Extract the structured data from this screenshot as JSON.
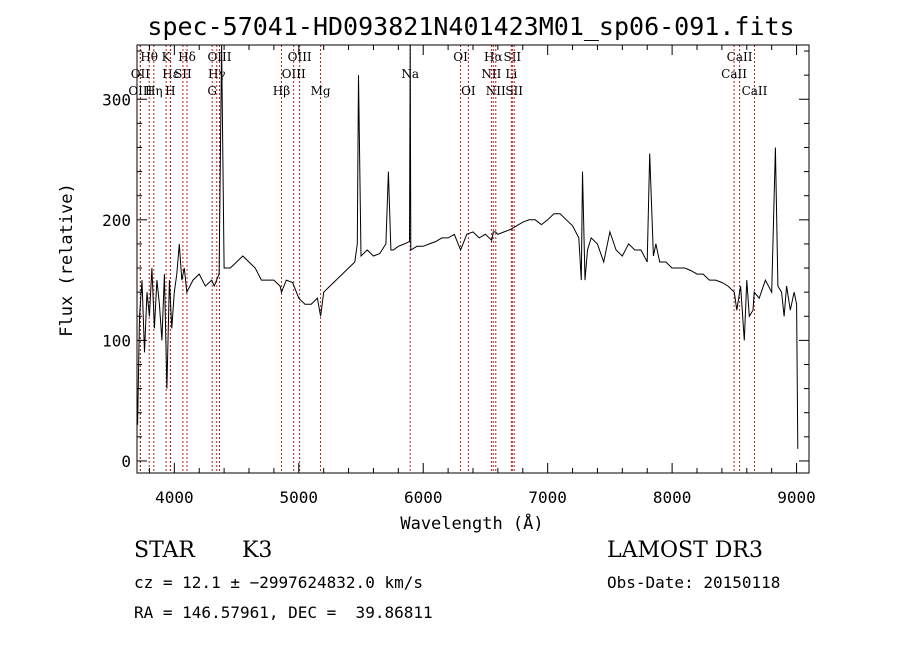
{
  "chart_data": {
    "type": "line",
    "title": "spec-57041-HD093821N401423M01_sp06-091.fits",
    "xlabel": "Wavelength (Å)",
    "ylabel": "Flux (relative)",
    "xlim": [
      3700,
      9100
    ],
    "ylim": [
      -10,
      345
    ],
    "grid": false,
    "x_ticks": [
      4000,
      5000,
      6000,
      7000,
      8000,
      9000
    ],
    "y_ticks": [
      0,
      100,
      200,
      300
    ],
    "series": [
      {
        "x": [
          3705,
          3720,
          3740,
          3760,
          3780,
          3800,
          3820,
          3840,
          3860,
          3880,
          3900,
          3920,
          3940,
          3960,
          3980,
          4000,
          4020,
          4040,
          4060,
          4080,
          4100,
          4150,
          4200,
          4250,
          4300,
          4320,
          4340,
          4360,
          4380,
          4400,
          4450,
          4500,
          4550,
          4600,
          4650,
          4700,
          4750,
          4800,
          4850,
          4861,
          4900,
          4950,
          5000,
          5050,
          5100,
          5150,
          5175,
          5200,
          5250,
          5300,
          5350,
          5400,
          5450,
          5470,
          5480,
          5500,
          5550,
          5600,
          5650,
          5700,
          5720,
          5740,
          5760,
          5800,
          5850,
          5890,
          5895,
          5900,
          5950,
          6000,
          6050,
          6100,
          6150,
          6200,
          6250,
          6300,
          6350,
          6400,
          6450,
          6500,
          6550,
          6563,
          6580,
          6600,
          6650,
          6700,
          6750,
          6800,
          6850,
          6900,
          6950,
          7000,
          7050,
          7100,
          7150,
          7200,
          7250,
          7270,
          7280,
          7300,
          7320,
          7350,
          7400,
          7450,
          7500,
          7550,
          7600,
          7650,
          7700,
          7750,
          7800,
          7820,
          7850,
          7870,
          7900,
          7950,
          8000,
          8050,
          8100,
          8150,
          8200,
          8250,
          8300,
          8350,
          8400,
          8450,
          8500,
          8520,
          8550,
          8580,
          8600,
          8620,
          8650,
          8660,
          8700,
          8750,
          8800,
          8830,
          8850,
          8880,
          8900,
          8920,
          8950,
          8980,
          9000,
          9010
        ],
        "y": [
          30,
          120,
          150,
          90,
          140,
          120,
          160,
          110,
          150,
          130,
          100,
          155,
          60,
          150,
          110,
          140,
          155,
          180,
          150,
          160,
          140,
          150,
          155,
          145,
          150,
          145,
          150,
          155,
          355,
          160,
          160,
          165,
          170,
          165,
          160,
          150,
          150,
          150,
          145,
          140,
          150,
          148,
          135,
          130,
          130,
          135,
          120,
          140,
          145,
          150,
          155,
          160,
          165,
          180,
          320,
          170,
          175,
          170,
          172,
          180,
          240,
          175,
          175,
          178,
          180,
          182,
          350,
          175,
          178,
          178,
          180,
          182,
          185,
          185,
          188,
          175,
          188,
          190,
          185,
          188,
          183,
          190,
          190,
          188,
          190,
          192,
          195,
          198,
          200,
          200,
          196,
          200,
          205,
          205,
          200,
          195,
          185,
          150,
          240,
          150,
          175,
          185,
          180,
          165,
          190,
          175,
          170,
          180,
          175,
          175,
          165,
          255,
          170,
          180,
          165,
          165,
          160,
          160,
          160,
          158,
          155,
          155,
          150,
          150,
          148,
          145,
          140,
          125,
          145,
          100,
          150,
          120,
          125,
          140,
          135,
          150,
          140,
          260,
          145,
          140,
          120,
          145,
          125,
          140,
          130,
          10
        ]
      }
    ],
    "line_markers": [
      {
        "label": "Hθ",
        "wave": 3798,
        "row": 1
      },
      {
        "label": "OII",
        "wave": 3727,
        "row": 2
      },
      {
        "label": "OIII",
        "wave": 3727,
        "row": 3
      },
      {
        "label": "K",
        "wave": 3934,
        "row": 1
      },
      {
        "label": "Hε",
        "wave": 3970,
        "row": 2
      },
      {
        "label": "SII",
        "wave": 4069,
        "row": 2
      },
      {
        "label": "Hη",
        "wave": 3835,
        "row": 3
      },
      {
        "label": "H",
        "wave": 3968,
        "row": 3
      },
      {
        "label": "Hδ",
        "wave": 4102,
        "row": 1
      },
      {
        "label": "OIII",
        "wave": 4363,
        "row": 1
      },
      {
        "label": "Hγ",
        "wave": 4341,
        "row": 2
      },
      {
        "label": "G",
        "wave": 4304,
        "row": 3
      },
      {
        "label": "OIII",
        "wave": 5007,
        "row": 1
      },
      {
        "label": "OIII",
        "wave": 4959,
        "row": 2
      },
      {
        "label": "Hβ",
        "wave": 4861,
        "row": 3
      },
      {
        "label": "Mg",
        "wave": 5175,
        "row": 3
      },
      {
        "label": "Na",
        "wave": 5895,
        "row": 2
      },
      {
        "label": "OI",
        "wave": 6300,
        "row": 1
      },
      {
        "label": "OI",
        "wave": 6363,
        "row": 3
      },
      {
        "label": "Hα",
        "wave": 6563,
        "row": 1
      },
      {
        "label": "SII",
        "wave": 6716,
        "row": 1
      },
      {
        "label": "NII",
        "wave": 6548,
        "row": 2
      },
      {
        "label": "Li",
        "wave": 6708,
        "row": 2
      },
      {
        "label": "NII",
        "wave": 6583,
        "row": 3
      },
      {
        "label": "SII",
        "wave": 6731,
        "row": 3
      },
      {
        "label": "CaII",
        "wave": 8542,
        "row": 1
      },
      {
        "label": "CaII",
        "wave": 8498,
        "row": 2
      },
      {
        "label": "CaII",
        "wave": 8662,
        "row": 3
      }
    ],
    "marker_color": "#b22222"
  },
  "info": {
    "class": "STAR",
    "subclass": "K3",
    "survey": "LAMOST DR3",
    "cz": "cz = 12.1 ± −2997624832.0 km/s",
    "obs_date": "Obs-Date: 20150118",
    "coords": "RA = 146.57961, DEC =  39.86811"
  }
}
